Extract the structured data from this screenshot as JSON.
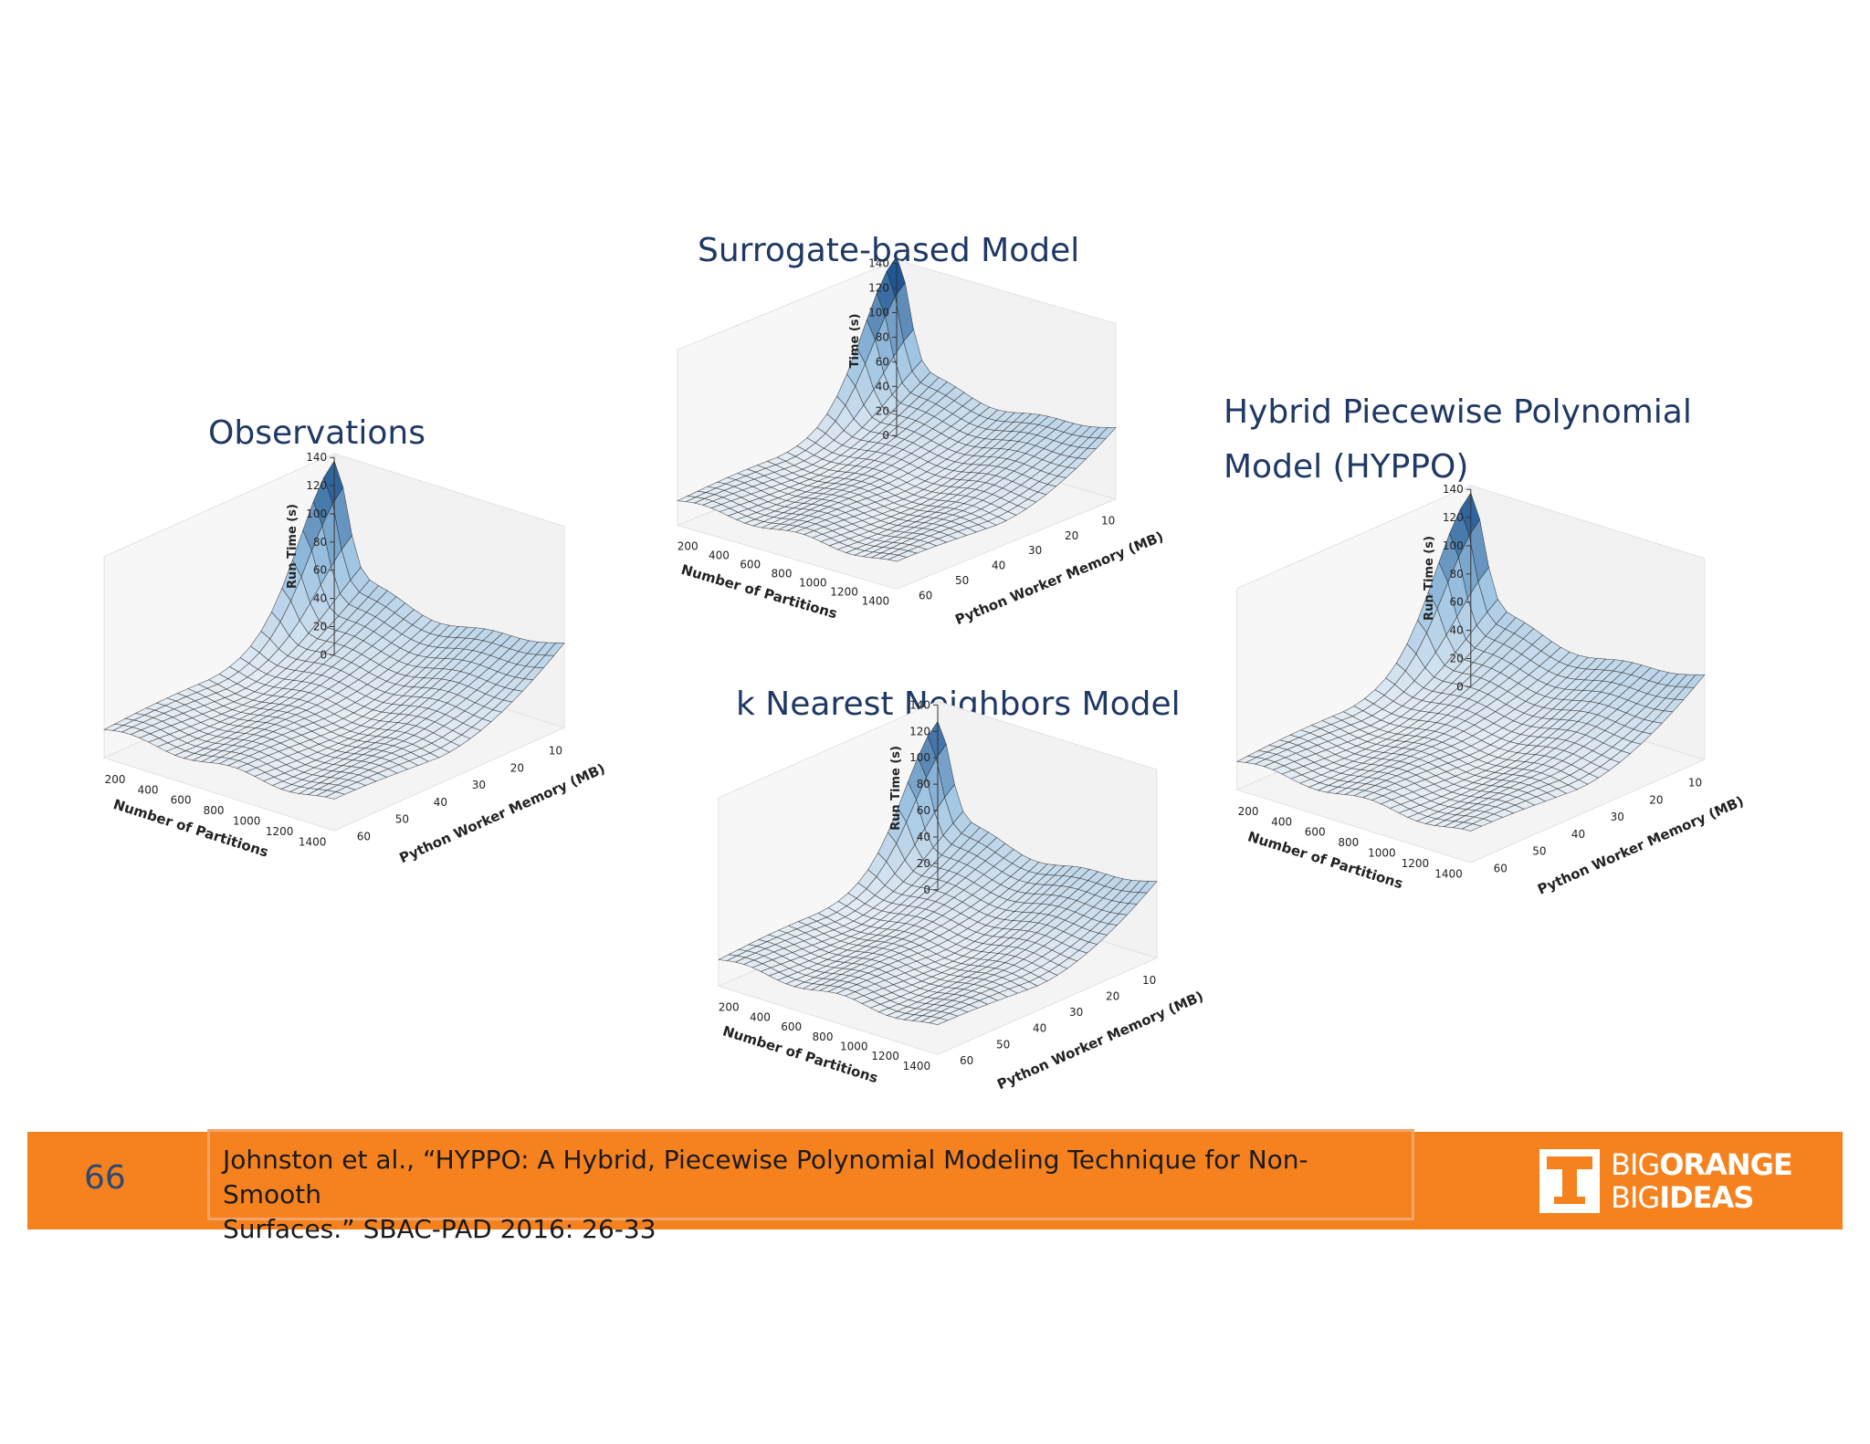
{
  "slide": {
    "page_number": "66"
  },
  "citation": {
    "line1": "Johnston et al., “HYPPO: A Hybrid, Piecewise Polynomial Modeling Technique for Non-Smooth",
    "line2": "Surfaces.” SBAC-PAD 2016: 26-33"
  },
  "logo": {
    "word_big": "BIG",
    "word_orange": "ORANGE",
    "word_ideas": "IDEAS"
  },
  "colors": {
    "footer": "#f5821f",
    "title": "#1f3864",
    "surface_low": "#e8eef5",
    "surface_high": "#0f4c8a"
  },
  "chart_data": [
    {
      "type": "surface3d",
      "title": "Observations",
      "title_line2": "",
      "xlabel": "Number of Partitions",
      "ylabel": "Python Worker Memory (MB)",
      "zlabel": "Run Time (s)",
      "x_ticks": [
        "200",
        "400",
        "600",
        "800",
        "1000",
        "1200",
        "1400"
      ],
      "y_ticks": [
        "60",
        "50",
        "40",
        "30",
        "20",
        "10"
      ],
      "z_ticks": [
        "0",
        "20",
        "40",
        "60",
        "80",
        "100",
        "120",
        "140"
      ],
      "zlim": [
        0,
        140
      ],
      "peak": {
        "partitions": 150,
        "memory_mb": 5,
        "run_time": 140
      },
      "baseline_run_time": 20,
      "plateau_run_time": 60
    },
    {
      "type": "surface3d",
      "title": "Surrogate-based Model",
      "title_line2": "",
      "xlabel": "Number of Partitions",
      "ylabel": "Python Worker Memory (MB)",
      "zlabel": "Time (s)",
      "x_ticks": [
        "200",
        "400",
        "600",
        "800",
        "1000",
        "1200",
        "1400"
      ],
      "y_ticks": [
        "60",
        "50",
        "40",
        "30",
        "20",
        "10"
      ],
      "z_ticks": [
        "0",
        "20",
        "40",
        "60",
        "80",
        "100",
        "120",
        "140"
      ],
      "zlim": [
        0,
        140
      ],
      "peak": {
        "partitions": 150,
        "memory_mb": 5,
        "run_time": 148
      },
      "baseline_run_time": 20,
      "plateau_run_time": 58
    },
    {
      "type": "surface3d",
      "title": "k Nearest Neighbors Model",
      "title_line2": "",
      "xlabel": "Number of Partitions",
      "ylabel": "Python Worker Memory (MB)",
      "zlabel": "Run Time (s)",
      "x_ticks": [
        "200",
        "400",
        "600",
        "800",
        "1000",
        "1200",
        "1400"
      ],
      "y_ticks": [
        "60",
        "50",
        "40",
        "30",
        "20",
        "10"
      ],
      "z_ticks": [
        "0",
        "20",
        "40",
        "60",
        "80",
        "100",
        "120",
        "140"
      ],
      "zlim": [
        0,
        140
      ],
      "peak": {
        "partitions": 150,
        "memory_mb": 5,
        "run_time": 130
      },
      "baseline_run_time": 20,
      "plateau_run_time": 58
    },
    {
      "type": "surface3d",
      "title": "Hybrid Piecewise Polynomial",
      "title_line2": "Model (HYPPO)",
      "xlabel": "Number of Partitions",
      "ylabel": "Python Worker Memory (MB)",
      "zlabel": "Run Time (s)",
      "x_ticks": [
        "200",
        "400",
        "600",
        "800",
        "1000",
        "1200",
        "1400"
      ],
      "y_ticks": [
        "60",
        "50",
        "40",
        "30",
        "20",
        "10"
      ],
      "z_ticks": [
        "0",
        "20",
        "40",
        "60",
        "80",
        "100",
        "120",
        "140"
      ],
      "zlim": [
        0,
        140
      ],
      "peak": {
        "partitions": 150,
        "memory_mb": 5,
        "run_time": 140
      },
      "baseline_run_time": 20,
      "plateau_run_time": 60
    }
  ]
}
